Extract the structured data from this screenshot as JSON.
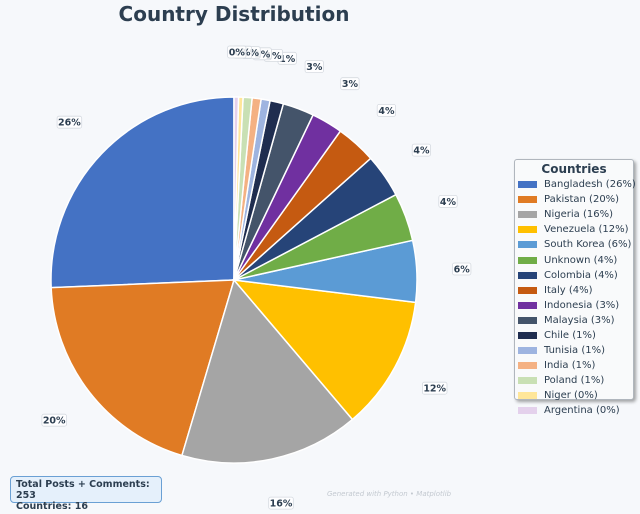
{
  "chart_data": {
    "type": "pie",
    "title": "Country Distribution",
    "categories": [
      "Bangladesh",
      "Pakistan",
      "Nigeria",
      "Venezuela",
      "South Korea",
      "Unknown",
      "Colombia",
      "Italy",
      "Indonesia",
      "Malaysia",
      "Chile",
      "Tunisia",
      "India",
      "Poland",
      "Niger",
      "Argentina"
    ],
    "values": [
      26,
      20,
      16,
      12,
      6,
      4,
      4,
      4,
      3,
      3,
      1,
      1,
      1,
      1,
      0,
      0
    ],
    "fractions": [
      0.26,
      0.2,
      0.16,
      0.12,
      0.055,
      0.043,
      0.039,
      0.036,
      0.028,
      0.028,
      0.012,
      0.008,
      0.008,
      0.008,
      0.004,
      0.004
    ],
    "slice_labels": [
      "26%",
      "20%",
      "16%",
      "12%",
      "6%",
      "4%",
      "4%",
      "4%",
      "3%",
      "3%",
      "1%",
      "1%",
      "1%",
      "1%",
      "0%",
      "0%"
    ],
    "colors": [
      "#4472c4",
      "#e07b24",
      "#a5a5a5",
      "#ffc000",
      "#5b9bd5",
      "#70ad47",
      "#264478",
      "#c55a11",
      "#7030a0",
      "#44546a",
      "#1f2d4f",
      "#9eb4e0",
      "#f4b183",
      "#c9e0b4",
      "#ffe699",
      "#e4d1ec"
    ],
    "legend_title": "Countries",
    "legend_entries": [
      "Bangladesh (26%)",
      "Pakistan (20%)",
      "Nigeria (16%)",
      "Venezuela (12%)",
      "South Korea (6%)",
      "Unknown (4%)",
      "Colombia (4%)",
      "Italy (4%)",
      "Indonesia (3%)",
      "Malaysia (3%)",
      "Chile (1%)",
      "Tunisia (1%)",
      "India (1%)",
      "Poland (1%)",
      "Niger (0%)",
      "Argentina (0%)"
    ],
    "legend_position": "right",
    "start_angle": "top",
    "direction": "counterclockwise"
  },
  "summary": {
    "line1": "Total Posts + Comments: 253",
    "line2": "Countries: 16"
  },
  "footer": "Generated with Python • Matplotlib"
}
